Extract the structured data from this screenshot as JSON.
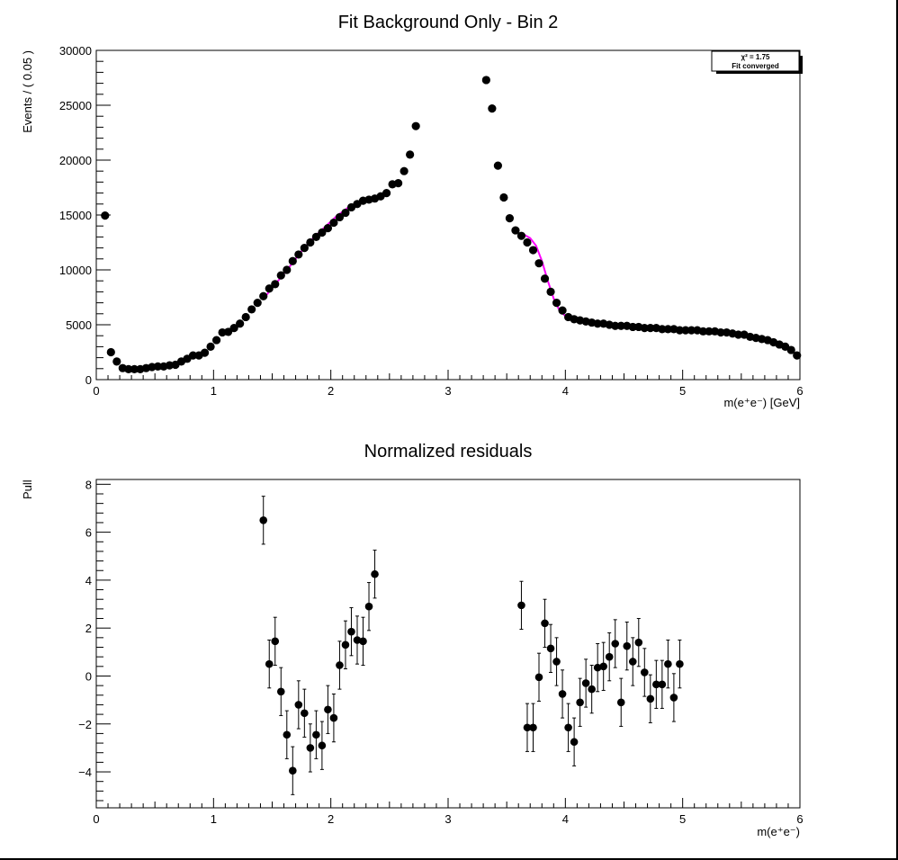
{
  "chart_data": [
    {
      "type": "scatter",
      "title": "Fit Background Only - Bin 2",
      "xlabel": "m(e⁺e⁻) [GeV]",
      "ylabel": "Events / ( 0.05 )",
      "xlim": [
        0,
        6
      ],
      "ylim": [
        0,
        30000
      ],
      "x_ticks": [
        "0",
        "1",
        "2",
        "3",
        "4",
        "5",
        "6"
      ],
      "y_ticks": [
        "0",
        "5000",
        "10000",
        "15000",
        "20000",
        "25000",
        "30000"
      ],
      "grid": false,
      "legend": {
        "placement": "top-right",
        "chi2_label": "χ² = 1.75",
        "status_label": "Fit converged"
      },
      "series": [
        {
          "kind": "points",
          "color": "#000000",
          "x": [
            0.075,
            0.125,
            0.175,
            0.225,
            0.275,
            0.325,
            0.375,
            0.425,
            0.475,
            0.525,
            0.575,
            0.625,
            0.675,
            0.725,
            0.775,
            0.825,
            0.875,
            0.925,
            0.975,
            1.025,
            1.075,
            1.125,
            1.175,
            1.225,
            1.275,
            1.325,
            1.375,
            1.425,
            1.475,
            1.525,
            1.575,
            1.625,
            1.675,
            1.725,
            1.775,
            1.825,
            1.875,
            1.925,
            1.975,
            2.025,
            2.075,
            2.125,
            2.175,
            2.225,
            2.275,
            2.325,
            2.375,
            2.425,
            2.475,
            2.525,
            2.575,
            2.625,
            2.675,
            2.725,
            3.325,
            3.375,
            3.425,
            3.475,
            3.525,
            3.575,
            3.625,
            3.675,
            3.725,
            3.775,
            3.825,
            3.875,
            3.925,
            3.975,
            4.025,
            4.075,
            4.125,
            4.175,
            4.225,
            4.275,
            4.325,
            4.375,
            4.425,
            4.475,
            4.525,
            4.575,
            4.625,
            4.675,
            4.725,
            4.775,
            4.825,
            4.875,
            4.925,
            4.975,
            5.025,
            5.075,
            5.125,
            5.175,
            5.225,
            5.275,
            5.325,
            5.375,
            5.425,
            5.475,
            5.525,
            5.575,
            5.625,
            5.675,
            5.725,
            5.775,
            5.825,
            5.875,
            5.925,
            5.975
          ],
          "y": [
            14950,
            2500,
            1650,
            1050,
            950,
            950,
            950,
            1050,
            1150,
            1200,
            1200,
            1300,
            1350,
            1650,
            1900,
            2200,
            2200,
            2450,
            3000,
            3600,
            4300,
            4350,
            4700,
            5100,
            5700,
            6400,
            7000,
            7600,
            8300,
            8700,
            9500,
            10000,
            10800,
            11400,
            12000,
            12500,
            13000,
            13400,
            13800,
            14300,
            14800,
            15200,
            15700,
            16000,
            16300,
            16400,
            16500,
            16700,
            17000,
            17800,
            17900,
            19000,
            20500,
            23100,
            27300,
            24700,
            19500,
            16600,
            14700,
            13600,
            13100,
            12500,
            11800,
            10600,
            9200,
            8000,
            7000,
            6300,
            5700,
            5500,
            5400,
            5300,
            5200,
            5100,
            5100,
            5000,
            4900,
            4900,
            4900,
            4800,
            4800,
            4700,
            4700,
            4700,
            4600,
            4600,
            4600,
            4500,
            4500,
            4500,
            4500,
            4400,
            4400,
            4400,
            4300,
            4300,
            4200,
            4100,
            4100,
            3900,
            3800,
            3700,
            3600,
            3400,
            3200,
            3000,
            2700,
            2200
          ]
        },
        {
          "kind": "fit-left",
          "color": "#ff00ff",
          "x": [
            1.45,
            1.55,
            1.65,
            1.75,
            1.85,
            1.95,
            2.05,
            2.15,
            2.25,
            2.35,
            2.4
          ],
          "y": [
            7700,
            9000,
            10300,
            11700,
            12900,
            13900,
            14900,
            15700,
            16200,
            16400,
            16400
          ]
        },
        {
          "kind": "fit-right",
          "color": "#ff00ff",
          "x": [
            3.65,
            3.7,
            3.75,
            3.8,
            3.85,
            3.9,
            3.95,
            4.0,
            4.1,
            4.2,
            4.3,
            4.5,
            4.7,
            4.85,
            5.0
          ],
          "y": [
            13200,
            12900,
            12200,
            10800,
            9000,
            7400,
            6300,
            5800,
            5500,
            5300,
            5150,
            5000,
            4850,
            4750,
            4600
          ]
        }
      ]
    },
    {
      "type": "scatter",
      "title": "Normalized residuals",
      "xlabel": "m(e⁺e⁻)",
      "ylabel": "Pull",
      "xlim": [
        0,
        6
      ],
      "ylim": [
        -5.5,
        8.2
      ],
      "x_ticks": [
        "0",
        "1",
        "2",
        "3",
        "4",
        "5",
        "6"
      ],
      "y_ticks": [
        "−4",
        "−2",
        "0",
        "2",
        "4",
        "6",
        "8"
      ],
      "grid": false,
      "error": 1.0,
      "series": [
        {
          "kind": "pulls",
          "color": "#000000",
          "x": [
            1.425,
            1.475,
            1.525,
            1.575,
            1.625,
            1.675,
            1.725,
            1.775,
            1.825,
            1.875,
            1.925,
            1.975,
            2.025,
            2.075,
            2.125,
            2.175,
            2.225,
            2.275,
            2.325,
            2.375,
            3.625,
            3.675,
            3.725,
            3.775,
            3.825,
            3.875,
            3.925,
            3.975,
            4.025,
            4.075,
            4.125,
            4.175,
            4.225,
            4.275,
            4.325,
            4.375,
            4.425,
            4.475,
            4.525,
            4.575,
            4.625,
            4.675,
            4.725,
            4.775,
            4.825,
            4.875,
            4.925,
            4.975
          ],
          "y": [
            6.5,
            0.5,
            1.45,
            -0.65,
            -2.45,
            -3.95,
            -1.2,
            -1.55,
            -3.0,
            -2.45,
            -2.9,
            -1.4,
            -1.75,
            0.45,
            1.3,
            1.85,
            1.5,
            1.45,
            2.9,
            4.25,
            2.95,
            -2.15,
            -2.15,
            -0.05,
            2.2,
            1.15,
            0.6,
            -0.75,
            -2.15,
            -2.75,
            -1.1,
            -0.3,
            -0.55,
            0.35,
            0.4,
            0.8,
            1.35,
            -1.1,
            1.25,
            0.6,
            1.4,
            0.15,
            -0.95,
            -0.35,
            -0.35,
            0.5,
            -0.9,
            0.5
          ]
        }
      ]
    }
  ]
}
